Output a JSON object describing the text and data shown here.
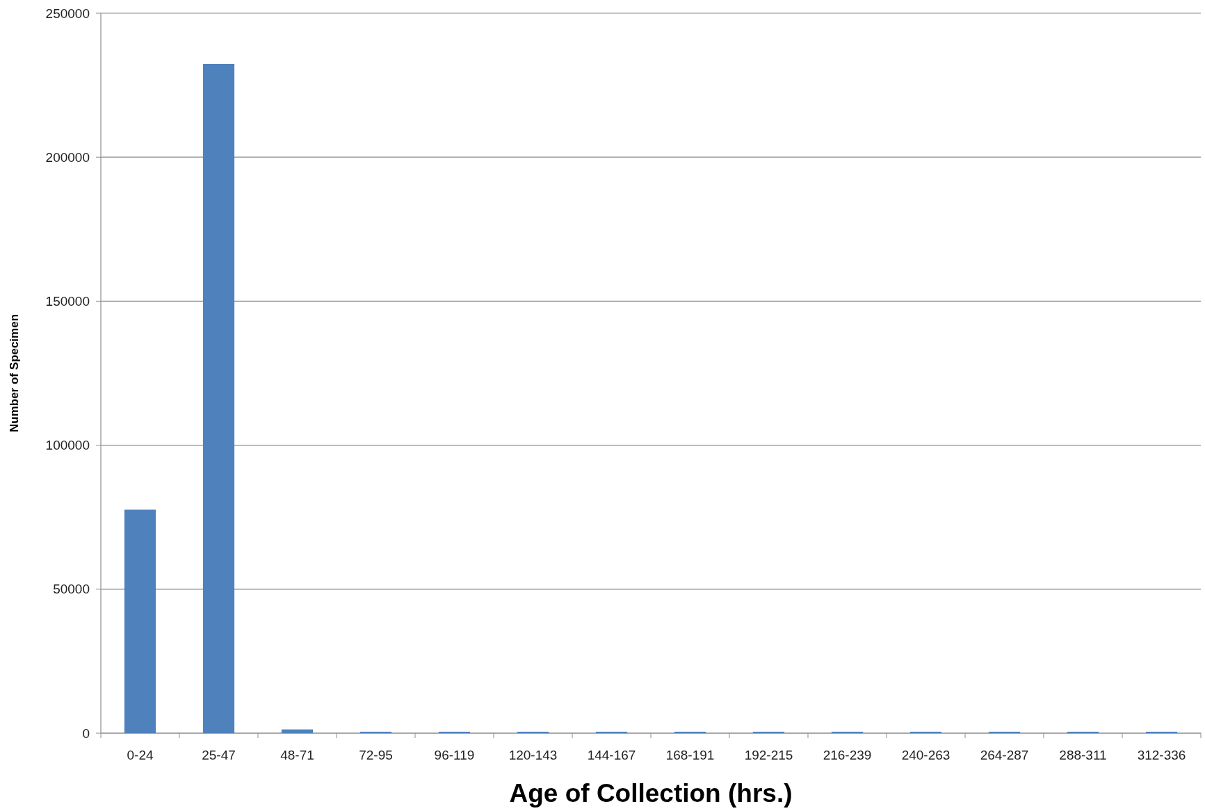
{
  "chart_data": {
    "type": "bar",
    "xlabel": "Age of Collection (hrs.)",
    "ylabel": "Number of Specimen",
    "categories": [
      "0-24",
      "25-47",
      "48-71",
      "72-95",
      "96-119",
      "120-143",
      "144-167",
      "168-191",
      "192-215",
      "216-239",
      "240-263",
      "264-287",
      "288-311",
      "312-336"
    ],
    "values": [
      77600,
      232400,
      1300,
      500,
      500,
      500,
      500,
      500,
      500,
      500,
      500,
      500,
      500,
      500
    ],
    "color": "#4f81bd",
    "ylim": [
      0,
      250000
    ],
    "yticks": [
      0,
      50000,
      100000,
      150000,
      200000,
      250000
    ],
    "grid": "y"
  }
}
